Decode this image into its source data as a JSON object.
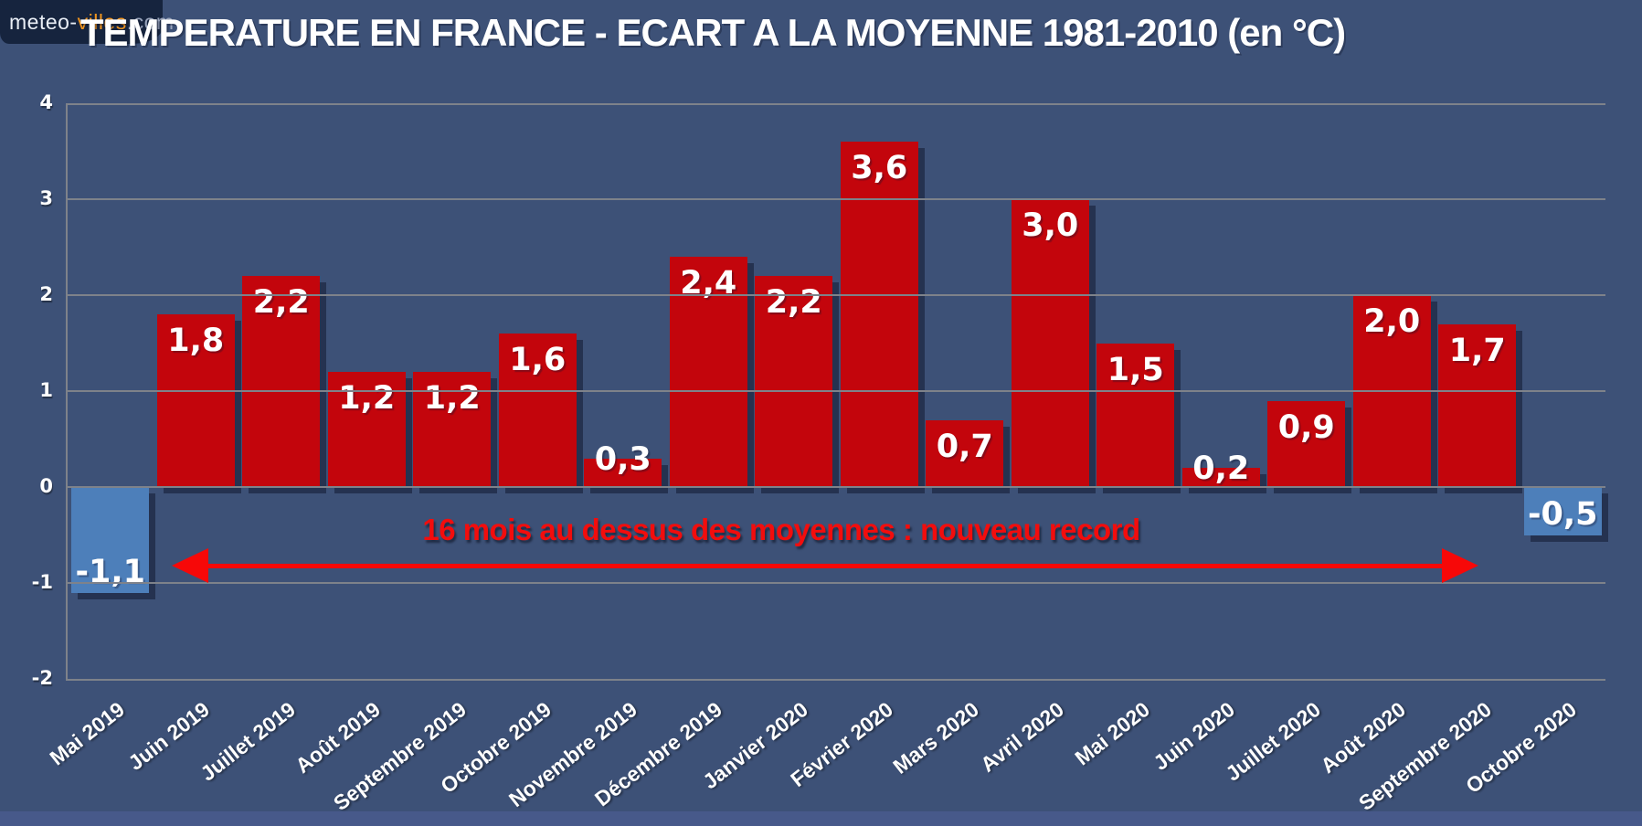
{
  "logo": {
    "text_meteo": "meteo-",
    "text_villes": "villes",
    "text_com": ".com"
  },
  "header": {
    "title": "TEMPERATURE EN FRANCE - ECART A LA MOYENNE 1981-2010 (en °C)"
  },
  "annotation": {
    "label": "16 mois au dessus des moyennes : nouveau record"
  },
  "chart_data": {
    "type": "bar",
    "title": "TEMPERATURE EN FRANCE - ECART A LA MOYENNE 1981-2010 (en °C)",
    "categories": [
      "Mai 2019",
      "Juin 2019",
      "Juillet 2019",
      "Août 2019",
      "Septembre 2019",
      "Octobre 2019",
      "Novembre 2019",
      "Décembre 2019",
      "Janvier 2020",
      "Février 2020",
      "Mars 2020",
      "Avril 2020",
      "Mai 2020",
      "Juin 2020",
      "Juillet 2020",
      "Août 2020",
      "Septembre 2020",
      "Octobre 2020"
    ],
    "values": [
      -1.1,
      1.8,
      2.2,
      1.2,
      1.2,
      1.6,
      0.3,
      2.4,
      2.2,
      3.6,
      0.7,
      3.0,
      1.5,
      0.2,
      0.9,
      2.0,
      1.7,
      -0.5
    ],
    "value_labels": [
      "-1,1",
      "1,8",
      "2,2",
      "1,2",
      "1,2",
      "1,6",
      "0,3",
      "2,4",
      "2,2",
      "3,6",
      "0,7",
      "3,0",
      "1,5",
      "0,2",
      "0,9",
      "2,0",
      "1,7",
      "-0,5"
    ],
    "ylim": [
      -2,
      4
    ],
    "yticks": [
      4,
      3,
      2,
      1,
      0,
      -1,
      -2
    ],
    "ytick_labels": [
      "4",
      "3",
      "2",
      "1",
      "0",
      "-1",
      "-2"
    ],
    "grid": true,
    "legend": "none",
    "annotation_span_months": 16,
    "colors": {
      "background": "#3d5177",
      "bar_positive": "#c3050c",
      "bar_negative": "#4d7fba",
      "gridline": "#7e828a",
      "annotation_red": "#f20d0d",
      "logo_background": "#16243e",
      "logo_orange": "#f0941e",
      "text_white": "#ffffff"
    }
  }
}
